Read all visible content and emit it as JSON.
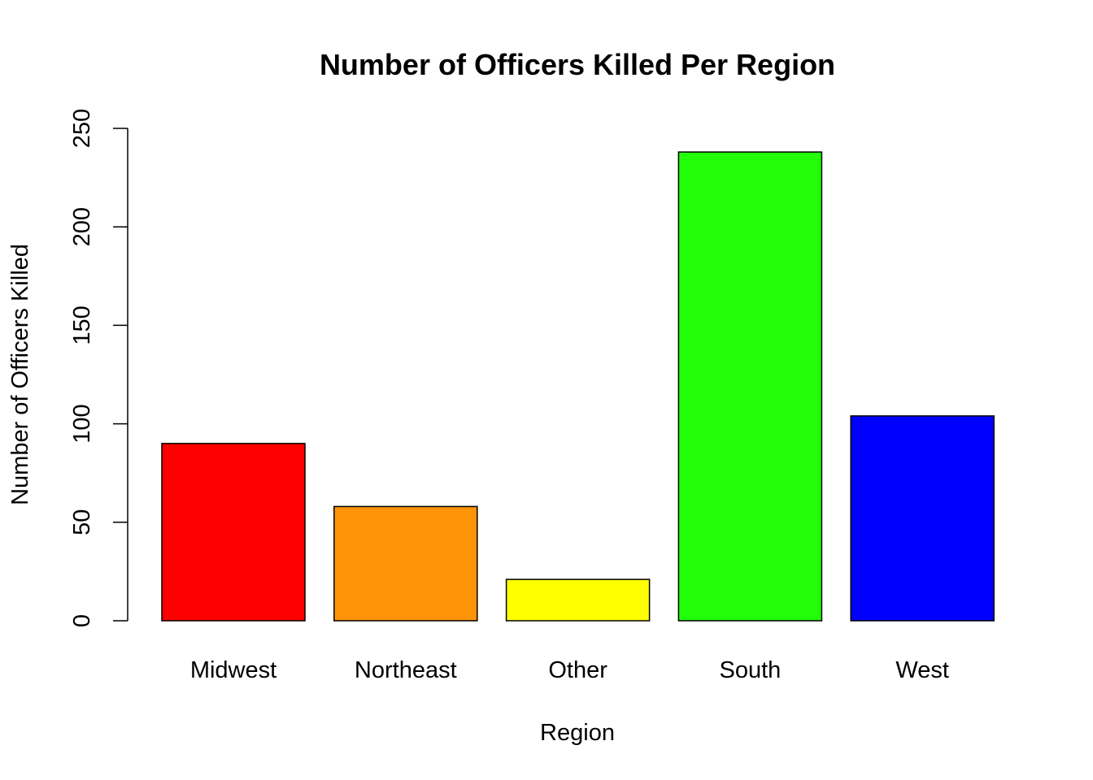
{
  "chart_data": {
    "type": "bar",
    "title": "Number of Officers Killed Per Region",
    "xlabel": "Region",
    "ylabel": "Number of Officers Killed",
    "categories": [
      "Midwest",
      "Northeast",
      "Other",
      "South",
      "West"
    ],
    "values": [
      90,
      58,
      21,
      238,
      104
    ],
    "colors": [
      "#ff0000",
      "#ff9408",
      "#ffff00",
      "#22ff08",
      "#0000ff"
    ],
    "bar_border_color": "#000000",
    "ylim": [
      0,
      250
    ],
    "yticks": [
      0,
      50,
      100,
      150,
      200,
      250
    ],
    "grid": false,
    "legend": "none"
  }
}
